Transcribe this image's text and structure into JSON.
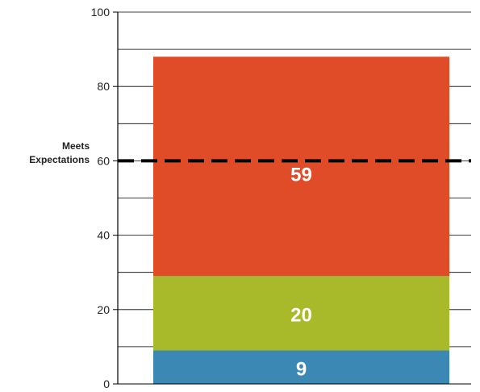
{
  "chart_data": {
    "type": "bar",
    "stacked": true,
    "categories": [
      ""
    ],
    "series": [
      {
        "values": [
          9
        ],
        "color": "#3c88b4"
      },
      {
        "values": [
          20
        ],
        "color": "#a8ba2a"
      },
      {
        "values": [
          59
        ],
        "color": "#e04b28"
      }
    ],
    "data_labels": [
      "9",
      "20",
      "59"
    ],
    "ylim": [
      0,
      100
    ],
    "yticks": [
      0,
      20,
      40,
      60,
      80,
      100
    ],
    "ytick_labels": [
      "0",
      "20",
      "40",
      "60",
      "80",
      "100"
    ],
    "minor_gridline_step": 10,
    "grid": true,
    "reference_line": {
      "value": 60,
      "label_line1": "Meets",
      "label_line2": "Expectations",
      "style": "dashed",
      "color": "#000000"
    },
    "title": "",
    "xlabel": "",
    "ylabel": "",
    "legend": "none"
  }
}
